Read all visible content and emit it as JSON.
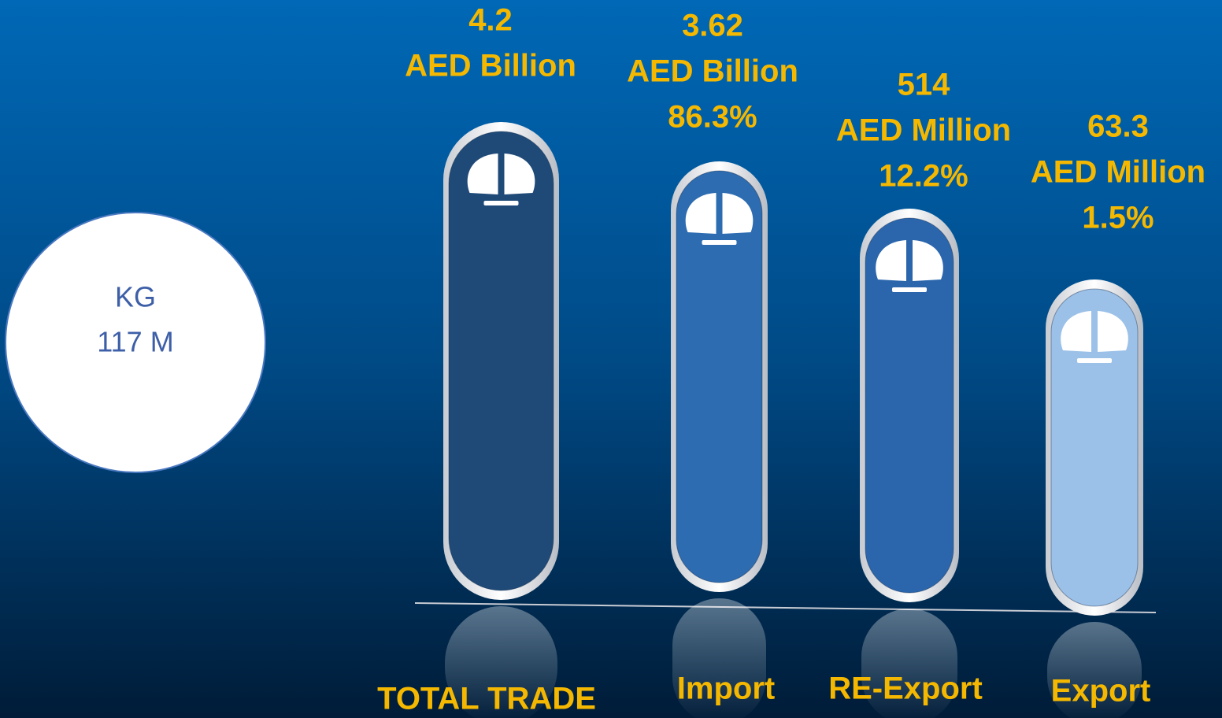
{
  "circle": {
    "unit": "KG",
    "value": "117 M"
  },
  "items": [
    {
      "value": "4.2",
      "unit": "AED Billion",
      "label": "TOTAL TRADE"
    },
    {
      "value": "3.62",
      "unit": "AED Billion",
      "share": "86.3%",
      "label": "Import"
    },
    {
      "value": "514",
      "unit": "AED Million",
      "share": "12.2%",
      "label": "RE-Export"
    },
    {
      "value": "63.3",
      "unit": "AED Million",
      "share": "1.5%",
      "label": "Export"
    }
  ]
}
